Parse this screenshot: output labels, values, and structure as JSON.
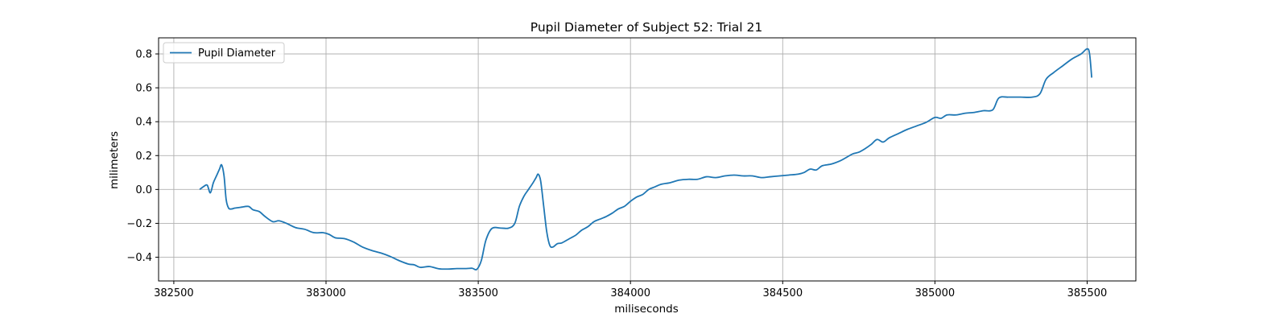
{
  "chart_data": {
    "type": "line",
    "title": "Pupil Diameter of Subject 52: Trial 21",
    "xlabel": "miliseconds",
    "ylabel": "milimeters",
    "xlim": [
      382450,
      385660
    ],
    "ylim": [
      -0.54,
      0.895
    ],
    "xticks": [
      382500,
      383000,
      383500,
      384000,
      384500,
      385000,
      385500
    ],
    "yticks": [
      -0.4,
      -0.2,
      0.0,
      0.2,
      0.4,
      0.6,
      0.8
    ],
    "ytick_labels": [
      "−0.4",
      "−0.2",
      "0.0",
      "0.2",
      "0.4",
      "0.6",
      "0.8"
    ],
    "grid": true,
    "legend_position": "top-left",
    "line_color": "#1f77b4",
    "series": [
      {
        "name": "Pupil Diameter",
        "x": [
          382585,
          382600,
          382610,
          382620,
          382630,
          382640,
          382650,
          382657,
          382665,
          382672,
          382680,
          382690,
          382700,
          382720,
          382745,
          382760,
          382780,
          382800,
          382825,
          382845,
          382870,
          382900,
          382930,
          382960,
          382990,
          383010,
          383030,
          383060,
          383090,
          383120,
          383150,
          383180,
          383210,
          383240,
          383270,
          383290,
          383310,
          383340,
          383370,
          383400,
          383430,
          383460,
          383480,
          383495,
          383510,
          383525,
          383545,
          383575,
          383600,
          383620,
          383635,
          383650,
          383665,
          383680,
          383690,
          383697,
          383705,
          383715,
          383725,
          383735,
          383745,
          383760,
          383775,
          383800,
          383820,
          383840,
          383860,
          383880,
          383900,
          383920,
          383940,
          383960,
          383980,
          384000,
          384020,
          384040,
          384060,
          384080,
          384100,
          384130,
          384160,
          384190,
          384220,
          384250,
          384280,
          384310,
          384340,
          384370,
          384400,
          384430,
          384460,
          384490,
          384520,
          384550,
          384570,
          384590,
          384610,
          384630,
          384660,
          384690,
          384710,
          384730,
          384750,
          384770,
          384790,
          384810,
          384830,
          384850,
          384880,
          384910,
          384940,
          384970,
          385000,
          385020,
          385040,
          385070,
          385100,
          385130,
          385160,
          385190,
          385210,
          385240,
          385280,
          385320,
          385345,
          385365,
          385390,
          385420,
          385450,
          385480,
          385500,
          385508,
          385515
        ],
        "y": [
          0.0,
          0.02,
          0.025,
          -0.02,
          0.04,
          0.08,
          0.12,
          0.145,
          0.08,
          -0.06,
          -0.11,
          -0.115,
          -0.11,
          -0.105,
          -0.1,
          -0.12,
          -0.13,
          -0.16,
          -0.19,
          -0.185,
          -0.2,
          -0.225,
          -0.235,
          -0.255,
          -0.255,
          -0.265,
          -0.285,
          -0.29,
          -0.31,
          -0.34,
          -0.36,
          -0.375,
          -0.395,
          -0.42,
          -0.44,
          -0.445,
          -0.46,
          -0.455,
          -0.468,
          -0.47,
          -0.467,
          -0.467,
          -0.465,
          -0.472,
          -0.42,
          -0.3,
          -0.23,
          -0.228,
          -0.228,
          -0.2,
          -0.1,
          -0.04,
          0.0,
          0.04,
          0.07,
          0.09,
          0.05,
          -0.1,
          -0.25,
          -0.33,
          -0.34,
          -0.32,
          -0.315,
          -0.29,
          -0.27,
          -0.24,
          -0.22,
          -0.19,
          -0.175,
          -0.16,
          -0.14,
          -0.115,
          -0.1,
          -0.07,
          -0.045,
          -0.03,
          0.0,
          0.015,
          0.03,
          0.04,
          0.055,
          0.06,
          0.06,
          0.075,
          0.07,
          0.08,
          0.085,
          0.08,
          0.08,
          0.07,
          0.075,
          0.08,
          0.085,
          0.09,
          0.1,
          0.12,
          0.115,
          0.14,
          0.15,
          0.17,
          0.19,
          0.21,
          0.22,
          0.24,
          0.265,
          0.295,
          0.28,
          0.305,
          0.33,
          0.355,
          0.375,
          0.395,
          0.425,
          0.42,
          0.44,
          0.44,
          0.45,
          0.455,
          0.465,
          0.47,
          0.54,
          0.545,
          0.545,
          0.545,
          0.565,
          0.65,
          0.69,
          0.73,
          0.77,
          0.8,
          0.83,
          0.8,
          0.66
        ]
      }
    ]
  }
}
